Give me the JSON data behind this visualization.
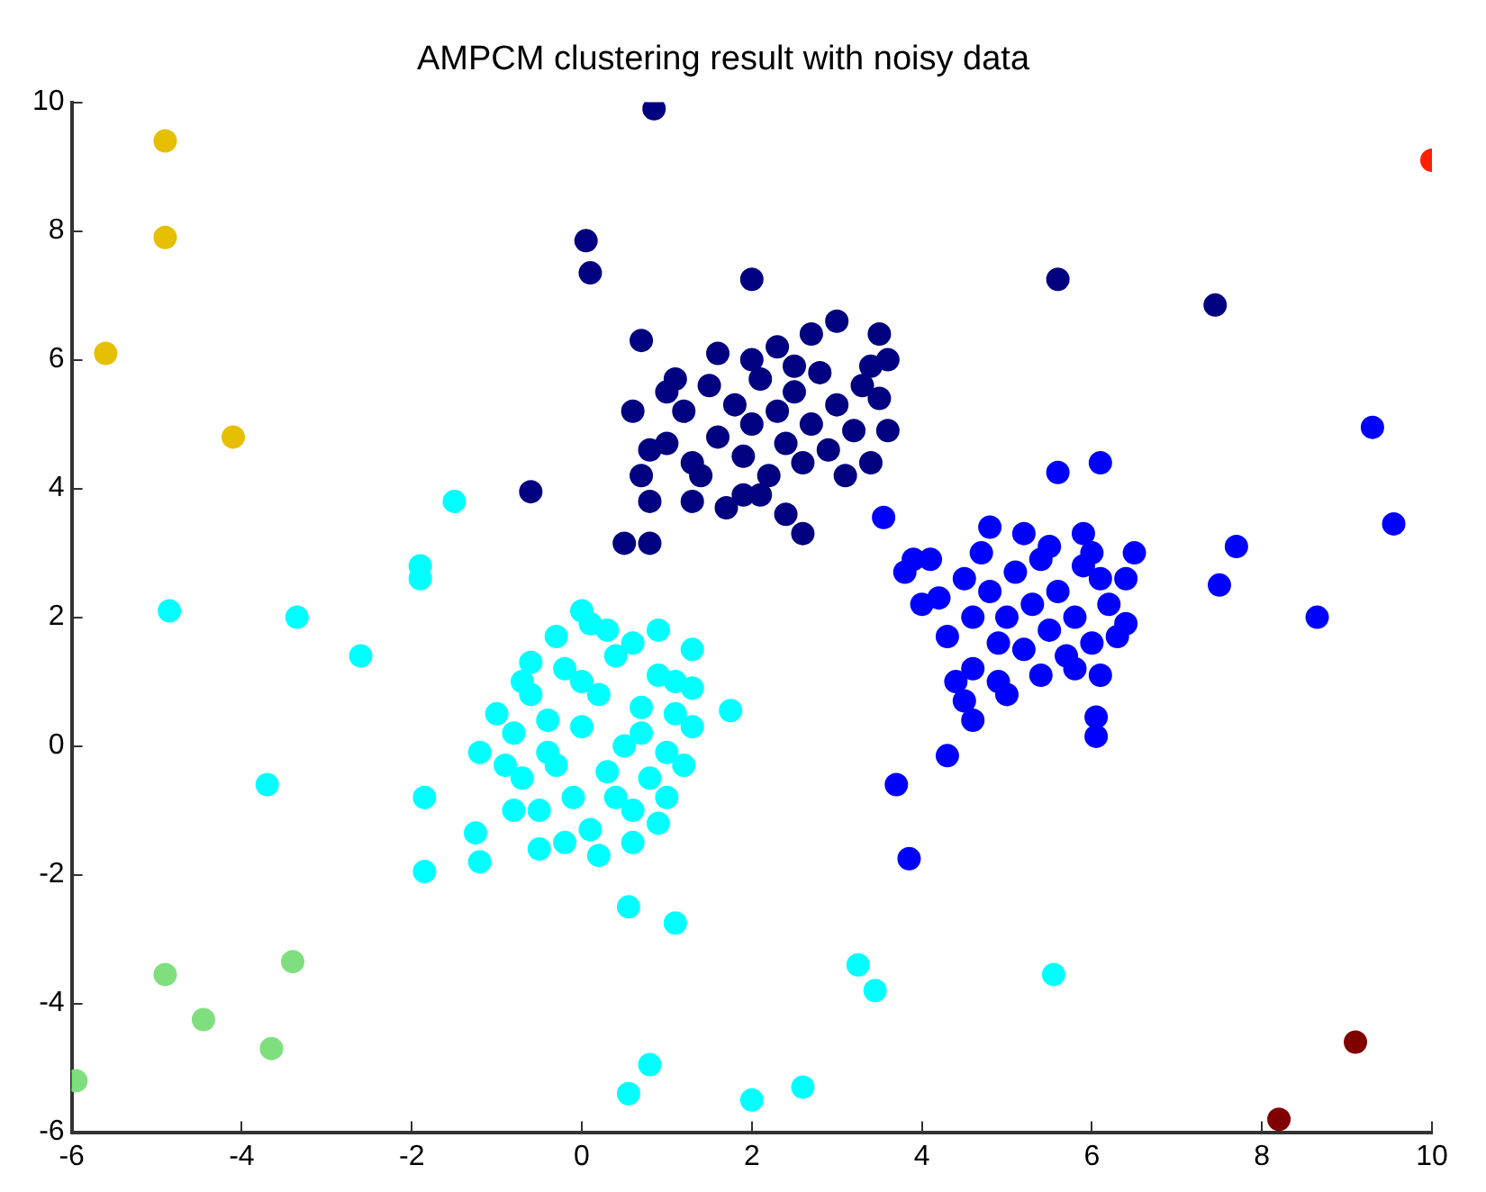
{
  "chart_data": {
    "type": "scatter",
    "title": "AMPCM clustering result with noisy data",
    "xlim": [
      -6,
      10
    ],
    "xticks": [
      -6,
      -4,
      -2,
      0,
      2,
      4,
      6,
      8,
      10
    ],
    "ylim": [
      -6,
      10
    ],
    "yticks": [
      -6,
      -4,
      -2,
      0,
      2,
      4,
      6,
      8,
      10
    ],
    "grid": false,
    "legend": false,
    "marker": "circle",
    "series": [
      {
        "color": "#000080",
        "x": [
          0.85,
          0.05,
          0.1,
          5.6,
          7.45,
          -0.6,
          0.5,
          0.8,
          2,
          0.7,
          1.0,
          1.2,
          1.4,
          1.5,
          1.6,
          1.8,
          1.9,
          2.0,
          2.1,
          2.2,
          2.3,
          2.4,
          2.5,
          2.6,
          2.7,
          2.8,
          2.9,
          3.0,
          3.2,
          3.3,
          3.1,
          1.3,
          1.7,
          2.4,
          2.6,
          0.8,
          0.7,
          0.8,
          1.1,
          1.6,
          2.3,
          2.7,
          3.0,
          3.5,
          3.6,
          3.5,
          3.6,
          3.4,
          1.9,
          2.5,
          1.3,
          2.1,
          0.6,
          1.0,
          3.4,
          2.0
        ],
        "values": [
          9.9,
          7.85,
          7.35,
          7.25,
          6.85,
          3.95,
          3.15,
          3.15,
          7.25,
          6.3,
          4.7,
          5.2,
          4.2,
          5.6,
          4.8,
          5.3,
          4.5,
          5.0,
          5.7,
          4.2,
          5.2,
          4.7,
          5.5,
          4.4,
          5.0,
          5.8,
          4.6,
          5.3,
          4.9,
          5.6,
          4.2,
          3.8,
          3.7,
          3.6,
          3.3,
          4.6,
          4.2,
          3.8,
          5.7,
          6.1,
          6.2,
          6.4,
          6.6,
          6.4,
          6.0,
          5.4,
          4.9,
          4.4,
          3.9,
          5.9,
          4.4,
          3.9,
          5.2,
          5.5,
          5.9,
          6.0
        ]
      },
      {
        "color": "#0000ff",
        "x": [
          9.3,
          9.55,
          7.7,
          7.5,
          8.65,
          3.7,
          3.85,
          4.3,
          3.55,
          5.6,
          6.1,
          6.05,
          6.05,
          4.1,
          4.2,
          4.3,
          4.5,
          4.6,
          4.6,
          4.7,
          4.8,
          4.9,
          4.8,
          5.0,
          5.1,
          5.2,
          5.3,
          5.4,
          5.5,
          5.6,
          5.7,
          5.8,
          5.9,
          6.0,
          6.2,
          6.3,
          6.1,
          6.4,
          6.5,
          6.4,
          5.2,
          5.5,
          4.4,
          4.5,
          4.6,
          4.9,
          5.0,
          5.4,
          5.8,
          6.1,
          3.8,
          3.9,
          4.0,
          5.9,
          6.0
        ],
        "values": [
          4.95,
          3.45,
          3.1,
          2.5,
          2.0,
          -0.6,
          -1.75,
          -0.15,
          3.55,
          4.25,
          4.4,
          0.45,
          0.15,
          2.9,
          2.3,
          1.7,
          2.6,
          2.0,
          1.2,
          3.0,
          2.4,
          1.6,
          3.4,
          2.0,
          2.7,
          1.5,
          2.2,
          2.9,
          1.8,
          2.4,
          1.4,
          2.0,
          2.8,
          1.6,
          2.2,
          1.7,
          2.6,
          2.6,
          3.0,
          1.9,
          3.3,
          3.1,
          1.0,
          0.7,
          0.4,
          1.0,
          0.8,
          1.1,
          1.2,
          1.1,
          2.7,
          2.9,
          2.2,
          3.3,
          3.0
        ]
      },
      {
        "color": "#00ffff",
        "x": [
          -1.5,
          -1.9,
          -1.9,
          -4.85,
          -3.35,
          -2.6,
          -3.7,
          -1.85,
          -1.2,
          -1.25,
          -1.2,
          -1.85,
          0.55,
          1.1,
          0.55,
          0.8,
          2.0,
          2.6,
          3.25,
          3.45,
          5.55,
          1.75,
          1.3,
          1.3,
          0.9,
          0,
          -0.8,
          -0.7,
          -0.6,
          -0.5,
          -0.4,
          -0.3,
          -0.2,
          -0.1,
          0,
          0.1,
          0.2,
          0.3,
          0.4,
          0.5,
          0.6,
          0.7,
          0.8,
          0.9,
          1.0,
          1.1,
          1.2,
          1.3,
          -0.9,
          -1.0,
          -0.6,
          -0.3,
          0.1,
          0.3,
          0.6,
          -0.5,
          -0.2,
          0.2,
          0.6,
          0.9,
          1.0,
          -0.8,
          0.0,
          0.4,
          -0.4,
          0.7,
          1.1,
          -0.7
        ],
        "values": [
          3.8,
          2.8,
          2.6,
          2.1,
          2.0,
          1.4,
          -0.6,
          -0.8,
          -0.1,
          -1.35,
          -1.8,
          -1.95,
          -2.5,
          -2.75,
          -5.4,
          -4.95,
          -5.5,
          -5.3,
          -3.4,
          -3.8,
          -3.55,
          0.55,
          1.5,
          0.9,
          1.8,
          2.1,
          0.2,
          -0.5,
          0.8,
          -1.0,
          0.4,
          -0.3,
          1.2,
          -0.8,
          0.3,
          -1.3,
          0.8,
          -0.4,
          1.4,
          0,
          -1.0,
          0.6,
          -0.5,
          1.1,
          -0.1,
          0.5,
          -0.3,
          0.3,
          -0.3,
          0.5,
          1.3,
          1.7,
          1.9,
          1.8,
          1.6,
          -1.6,
          -1.5,
          -1.7,
          -1.5,
          -1.2,
          -0.8,
          -1.0,
          1.0,
          -0.8,
          -0.1,
          0.2,
          1.0,
          1.0
        ]
      },
      {
        "color": "#e6bf00",
        "x": [
          -4.9,
          -4.9,
          -5.6,
          -4.1
        ],
        "values": [
          9.4,
          7.9,
          6.1,
          4.8
        ]
      },
      {
        "color": "#7fdf7f",
        "x": [
          -4.9,
          -4.45,
          -3.65,
          -3.4,
          -5.95
        ],
        "values": [
          -3.55,
          -4.25,
          -4.7,
          -3.35,
          -5.2
        ]
      },
      {
        "color": "#800000",
        "x": [
          8.2,
          9.1
        ],
        "values": [
          -5.8,
          -4.6
        ]
      },
      {
        "color": "#ff2000",
        "x": [
          10
        ],
        "values": [
          9.1
        ]
      }
    ]
  }
}
